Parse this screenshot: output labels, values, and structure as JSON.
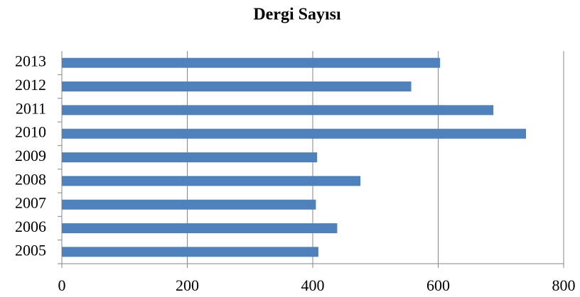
{
  "chart_data": {
    "type": "bar",
    "orientation": "horizontal",
    "title": "Dergi Sayısı",
    "categories": [
      "2005",
      "2006",
      "2007",
      "2008",
      "2009",
      "2010",
      "2011",
      "2012",
      "2013"
    ],
    "values": [
      409,
      439,
      405,
      476,
      407,
      740,
      688,
      557,
      603
    ],
    "color": "#4f81bd",
    "xlim": [
      0,
      800
    ],
    "xticks": [
      0,
      200,
      400,
      600,
      800
    ],
    "grid": true
  }
}
